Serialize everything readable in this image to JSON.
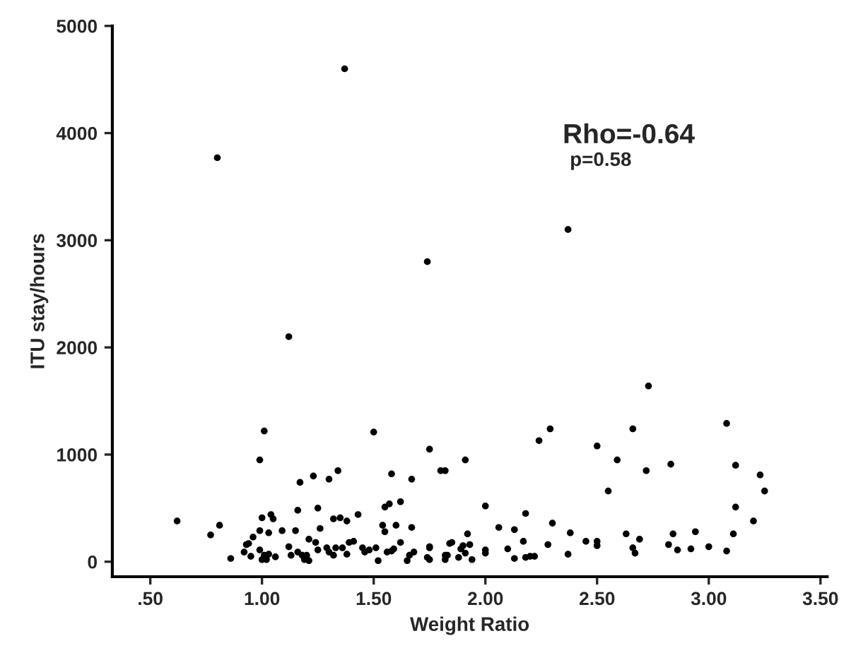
{
  "chart_data": {
    "type": "scatter",
    "xlabel": "Weight Ratio",
    "ylabel": "ITU stay/hours",
    "annotations": [
      "Rho=-0.64",
      "p=0.58"
    ],
    "xlim": [
      0.33,
      3.53
    ],
    "ylim": [
      -140,
      5000
    ],
    "xticks": [
      {
        "value": 0.5,
        "label": ".50"
      },
      {
        "value": 1.0,
        "label": "1.00"
      },
      {
        "value": 1.5,
        "label": "1.50"
      },
      {
        "value": 2.0,
        "label": "2.00"
      },
      {
        "value": 2.5,
        "label": "2.50"
      },
      {
        "value": 3.0,
        "label": "3.00"
      },
      {
        "value": 3.5,
        "label": "3.50"
      }
    ],
    "yticks": [
      0,
      1000,
      2000,
      3000,
      4000,
      5000
    ],
    "grid": false,
    "marker": "circle",
    "series": [
      {
        "color": "#000000",
        "x": [
          1.37,
          0.8,
          2.37,
          1.74,
          1.12,
          1.01,
          0.99,
          1.5,
          1.75,
          1.8,
          1.82,
          0.62,
          0.77,
          0.81,
          0.86,
          1.34,
          1.3,
          1.23,
          1.17,
          1.58,
          1.67,
          1.62,
          1.57,
          1.55,
          1.25,
          1.16,
          1.0,
          1.04,
          1.05,
          1.35,
          1.32,
          1.43,
          1.38,
          1.09,
          0.99,
          1.03,
          1.15,
          1.26,
          1.54,
          1.55,
          1.67,
          1.6,
          0.96,
          0.94,
          0.93,
          0.92,
          0.95,
          0.99,
          1.01,
          1.0,
          1.02,
          1.03,
          1.06,
          1.12,
          1.13,
          1.16,
          1.18,
          1.19,
          1.2,
          1.21,
          1.21,
          1.24,
          1.25,
          1.29,
          1.3,
          1.32,
          1.33,
          1.36,
          1.39,
          1.41,
          1.38,
          1.45,
          1.46,
          1.48,
          1.51,
          1.52,
          1.56,
          1.58,
          1.59,
          1.62,
          1.66,
          1.65,
          1.68,
          1.75,
          1.74,
          1.82,
          1.84,
          2.73,
          2.66,
          2.29,
          2.24,
          3.08,
          2.5,
          2.59,
          1.91,
          2.72,
          2.83,
          3.12,
          3.23,
          3.25,
          2.55,
          3.12,
          3.2,
          2.0,
          2.18,
          2.06,
          2.13,
          2.3,
          1.92,
          2.38,
          2.63,
          2.84,
          2.94,
          3.11,
          2.69,
          2.45,
          2.5,
          2.5,
          2.28,
          2.17,
          1.85,
          1.9,
          1.93,
          1.89,
          1.75,
          2.0,
          2.0,
          2.1,
          2.66,
          2.67,
          2.82,
          2.86,
          2.92,
          3.0,
          3.08,
          1.75,
          1.82,
          1.83,
          1.88,
          1.91,
          1.94,
          2.13,
          2.18,
          2.2,
          2.22,
          2.37
        ],
        "values": [
          4600,
          3770,
          3100,
          2800,
          2100,
          1220,
          950,
          1210,
          1050,
          850,
          850,
          380,
          250,
          340,
          30,
          850,
          770,
          800,
          740,
          820,
          770,
          560,
          540,
          510,
          500,
          480,
          410,
          440,
          400,
          410,
          400,
          440,
          380,
          290,
          290,
          270,
          290,
          310,
          340,
          280,
          320,
          340,
          230,
          170,
          160,
          90,
          50,
          110,
          60,
          20,
          20,
          70,
          45,
          140,
          60,
          90,
          60,
          20,
          60,
          10,
          210,
          180,
          110,
          130,
          90,
          60,
          130,
          130,
          180,
          190,
          70,
          130,
          90,
          110,
          130,
          10,
          90,
          100,
          120,
          180,
          60,
          10,
          90,
          130,
          40,
          60,
          170,
          1640,
          1240,
          1240,
          1130,
          1290,
          1080,
          950,
          950,
          850,
          910,
          900,
          810,
          660,
          660,
          510,
          380,
          520,
          450,
          320,
          300,
          360,
          260,
          270,
          260,
          260,
          280,
          260,
          210,
          190,
          190,
          150,
          160,
          190,
          180,
          150,
          160,
          120,
          140,
          110,
          80,
          120,
          130,
          80,
          160,
          110,
          120,
          140,
          100,
          20,
          20,
          60,
          40,
          80,
          20,
          30,
          40,
          50,
          50,
          70
        ]
      }
    ]
  }
}
